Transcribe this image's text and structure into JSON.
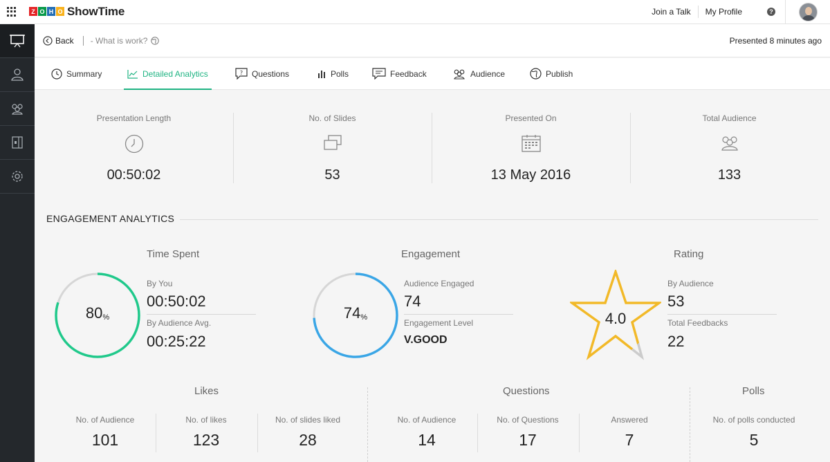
{
  "app": {
    "brand_letters": [
      "Z",
      "O",
      "H",
      "O"
    ],
    "name": "ShowTime"
  },
  "top_nav": {
    "join_talk": "Join a Talk",
    "my_profile": "My Profile",
    "help": "?"
  },
  "header": {
    "back_label": "Back",
    "presentation_title": "- What is work?",
    "presented_ago": "Presented 8 minutes ago"
  },
  "tabs": [
    {
      "label": "Summary",
      "icon": "clock-icon"
    },
    {
      "label": "Detailed Analytics",
      "icon": "line-chart-icon",
      "active": true
    },
    {
      "label": "Questions",
      "icon": "question-bubble-icon"
    },
    {
      "label": "Polls",
      "icon": "bar-chart-icon"
    },
    {
      "label": "Feedback",
      "icon": "feedback-icon"
    },
    {
      "label": "Audience",
      "icon": "audience-icon"
    },
    {
      "label": "Publish",
      "icon": "globe-icon"
    }
  ],
  "stats": [
    {
      "label": "Presentation Length",
      "value": "00:50:02",
      "icon": "clock-icon"
    },
    {
      "label": "No. of Slides",
      "value": "53",
      "icon": "slides-icon"
    },
    {
      "label": "Presented On",
      "value": "13 May 2016",
      "icon": "calendar-icon"
    },
    {
      "label": "Total Audience",
      "value": "133",
      "icon": "audience-icon"
    }
  ],
  "engagement": {
    "heading": "ENGAGEMENT ANALYTICS",
    "time_spent": {
      "title": "Time Spent",
      "percent": 80,
      "percent_text": "80",
      "percent_sign": "%",
      "by_you_label": "By You",
      "by_you_value": "00:50:02",
      "avg_label": "By Audience Avg.",
      "avg_value": "00:25:22",
      "ring_color": "#20c98b"
    },
    "engagement": {
      "title": "Engagement",
      "percent": 74,
      "percent_text": "74",
      "percent_sign": "%",
      "engaged_label": "Audience Engaged",
      "engaged_value": "74",
      "level_label": "Engagement Level",
      "level_value": "V.GOOD",
      "ring_color": "#3aa6e6"
    },
    "rating": {
      "title": "Rating",
      "value": "4.0",
      "fraction": 0.8,
      "by_audience_label": "By Audience",
      "by_audience_value": "53",
      "total_feedbacks_label": "Total Feedbacks",
      "total_feedbacks_value": "22",
      "star_color": "#f2b928"
    }
  },
  "likes": {
    "title": "Likes",
    "items": [
      {
        "label": "No. of Audience",
        "value": "101"
      },
      {
        "label": "No. of likes",
        "value": "123"
      },
      {
        "label": "No. of slides liked",
        "value": "28"
      }
    ]
  },
  "questions": {
    "title": "Questions",
    "items": [
      {
        "label": "No. of Audience",
        "value": "14"
      },
      {
        "label": "No. of Questions",
        "value": "17"
      },
      {
        "label": "Answered",
        "value": "7"
      }
    ]
  },
  "polls": {
    "title": "Polls",
    "items": [
      {
        "label": "No. of polls conducted",
        "value": "5"
      }
    ]
  },
  "colors": {
    "accent": "#20b483",
    "sidebar": "#24282c",
    "zoho_letters": [
      "#e42527",
      "#089949",
      "#226db4",
      "#f9b21d"
    ]
  }
}
